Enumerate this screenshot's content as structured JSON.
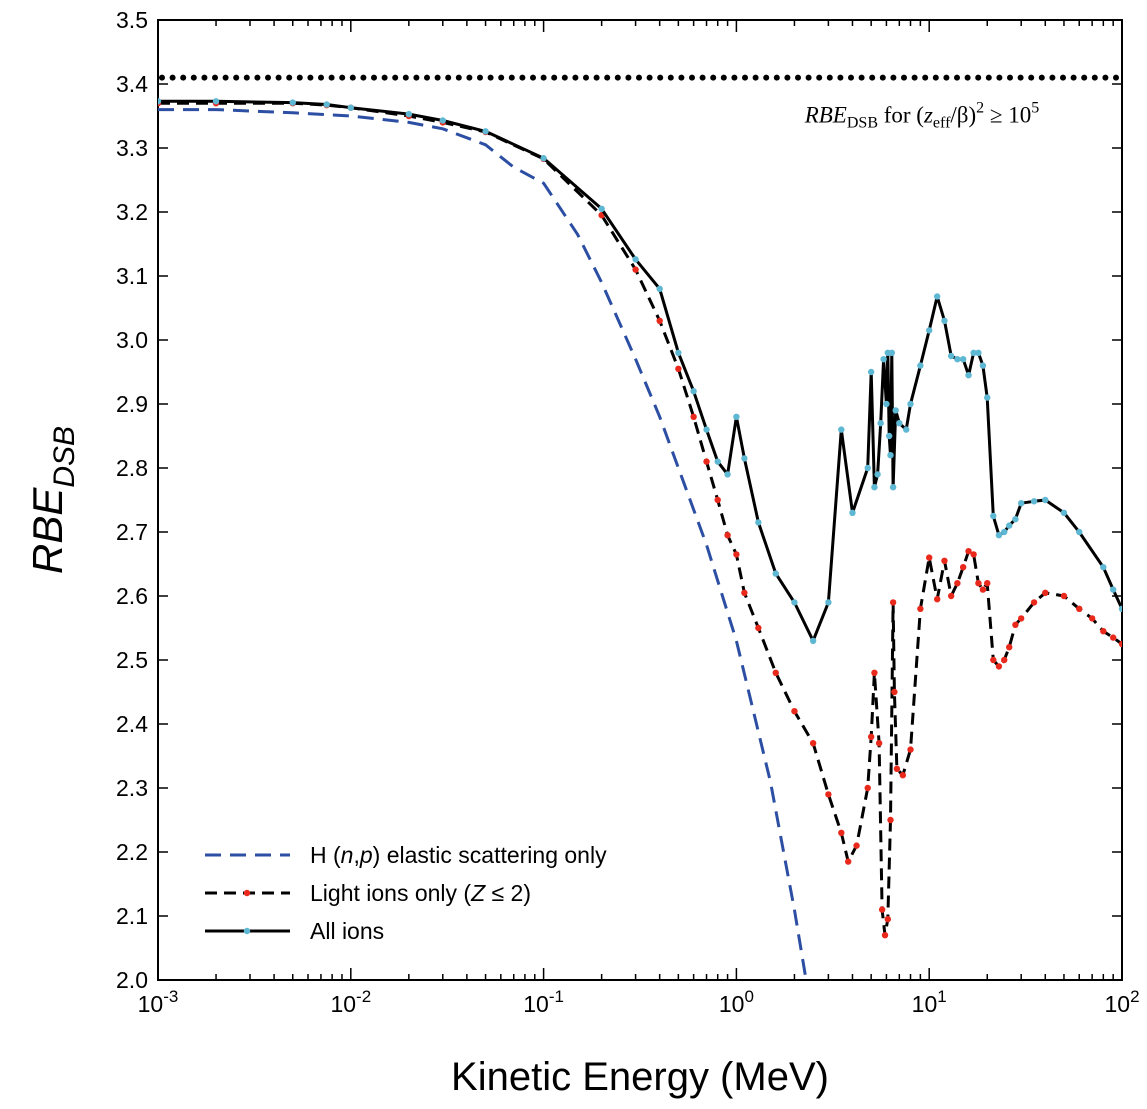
{
  "chart_data": {
    "type": "line",
    "title": "",
    "xlabel": "Kinetic Energy (MeV)",
    "ylabel": {
      "main": "RBE",
      "sub": "DSB"
    },
    "xscale": "log",
    "xlim": [
      0.001,
      100
    ],
    "ylim": [
      2.0,
      3.5
    ],
    "x_tick_labels": [
      {
        "base": "10",
        "exp": "-3"
      },
      {
        "base": "10",
        "exp": "-2"
      },
      {
        "base": "10",
        "exp": "-1"
      },
      {
        "base": "10",
        "exp": "0"
      },
      {
        "base": "10",
        "exp": "1"
      },
      {
        "base": "10",
        "exp": "2"
      }
    ],
    "y_tick_labels": [
      "2.0",
      "2.1",
      "2.2",
      "2.3",
      "2.4",
      "2.5",
      "2.6",
      "2.7",
      "2.8",
      "2.9",
      "3.0",
      "3.1",
      "3.2",
      "3.3",
      "3.4",
      "3.5"
    ],
    "grid": false,
    "legend_position": "bottom-left",
    "reference_line": {
      "y": 3.41,
      "style": "dotted",
      "label": {
        "pre": "RBE",
        "sub1": "DSB",
        "mid": " for (",
        "z": "z",
        "sub2": "eff",
        "tail": "/β)",
        "sup": "2",
        "rel": " ≥ 10",
        "sup2": "5"
      }
    },
    "series": [
      {
        "name": {
          "pre": "H (",
          "i1": "n",
          "mid": ",",
          "i2": "p",
          "post": ") elastic scattering only"
        },
        "style": "dashed",
        "color": "#2c4ea3",
        "marker_color": null,
        "x": [
          0.001,
          0.002,
          0.005,
          0.01,
          0.02,
          0.03,
          0.05,
          0.07,
          0.1,
          0.15,
          0.2,
          0.3,
          0.4,
          0.5,
          0.7,
          1.0,
          1.5,
          2.0,
          2.3
        ],
        "y": [
          3.36,
          3.36,
          3.355,
          3.35,
          3.34,
          3.33,
          3.305,
          3.27,
          3.245,
          3.165,
          3.09,
          2.97,
          2.88,
          2.8,
          2.68,
          2.53,
          2.31,
          2.11,
          2.0
        ]
      },
      {
        "name": {
          "pre": "Light ions only (",
          "i1": "Z",
          "mid": " ≤ 2",
          "i2": "",
          "post": ")"
        },
        "style": "dashed",
        "color": "#000000",
        "marker_color": "#e8291c",
        "x": [
          0.001,
          0.002,
          0.005,
          0.0075,
          0.01,
          0.02,
          0.03,
          0.05,
          0.1,
          0.2,
          0.3,
          0.4,
          0.5,
          0.6,
          0.7,
          0.8,
          0.9,
          1.0,
          1.1,
          1.3,
          1.6,
          2.0,
          2.5,
          3.0,
          3.5,
          3.8,
          4.2,
          4.8,
          5.0,
          5.2,
          5.5,
          5.7,
          5.9,
          6.1,
          6.3,
          6.5,
          6.6,
          6.8,
          7.3,
          8.0,
          9.0,
          10.0,
          11.0,
          12.0,
          13.0,
          14.0,
          15.0,
          16.0,
          17.0,
          18.0,
          19.0,
          20.0,
          21.5,
          23.0,
          24.5,
          26.0,
          28.0,
          30.0,
          35.0,
          40.0,
          50.0,
          60.0,
          70.0,
          80.0,
          90.0,
          100.0
        ],
        "y": [
          3.37,
          3.37,
          3.37,
          3.367,
          3.363,
          3.35,
          3.34,
          3.325,
          3.283,
          3.195,
          3.11,
          3.03,
          2.955,
          2.88,
          2.81,
          2.75,
          2.695,
          2.665,
          2.605,
          2.55,
          2.48,
          2.42,
          2.37,
          2.29,
          2.23,
          2.185,
          2.21,
          2.3,
          2.38,
          2.48,
          2.37,
          2.11,
          2.07,
          2.095,
          2.25,
          2.59,
          2.45,
          2.33,
          2.32,
          2.36,
          2.58,
          2.66,
          2.595,
          2.655,
          2.6,
          2.62,
          2.645,
          2.67,
          2.665,
          2.62,
          2.61,
          2.62,
          2.5,
          2.49,
          2.5,
          2.52,
          2.555,
          2.565,
          2.59,
          2.605,
          2.6,
          2.58,
          2.565,
          2.545,
          2.535,
          2.525
        ]
      },
      {
        "name": {
          "pre": "All ions",
          "i1": "",
          "mid": "",
          "i2": "",
          "post": ""
        },
        "style": "solid",
        "color": "#000000",
        "marker_color": "#5fb8d3",
        "x": [
          0.001,
          0.002,
          0.005,
          0.0075,
          0.01,
          0.02,
          0.03,
          0.05,
          0.1,
          0.2,
          0.3,
          0.4,
          0.5,
          0.6,
          0.7,
          0.8,
          0.9,
          1.0,
          1.1,
          1.3,
          1.6,
          2.0,
          2.5,
          3.0,
          3.5,
          4.0,
          4.8,
          5.0,
          5.2,
          5.4,
          5.6,
          5.8,
          6.0,
          6.1,
          6.2,
          6.3,
          6.4,
          6.5,
          6.7,
          7.0,
          7.6,
          8.0,
          9.0,
          10.0,
          11.0,
          12.0,
          13.0,
          14.0,
          15.0,
          16.0,
          17.0,
          18.0,
          19.0,
          20.0,
          21.5,
          23.0,
          24.5,
          26.0,
          28.0,
          30.0,
          35.0,
          40.0,
          50.0,
          60.0,
          80.0,
          90.0,
          100.0
        ],
        "y": [
          3.373,
          3.373,
          3.371,
          3.368,
          3.363,
          3.353,
          3.343,
          3.326,
          3.284,
          3.205,
          3.126,
          3.08,
          2.98,
          2.92,
          2.86,
          2.81,
          2.79,
          2.88,
          2.815,
          2.715,
          2.635,
          2.59,
          2.53,
          2.59,
          2.86,
          2.73,
          2.8,
          2.95,
          2.77,
          2.79,
          2.87,
          2.97,
          2.9,
          2.98,
          2.85,
          2.82,
          2.98,
          2.77,
          2.89,
          2.87,
          2.86,
          2.9,
          2.96,
          3.015,
          3.068,
          3.03,
          2.975,
          2.97,
          2.97,
          2.945,
          2.98,
          2.98,
          2.96,
          2.91,
          2.725,
          2.695,
          2.7,
          2.71,
          2.72,
          2.745,
          2.748,
          2.75,
          2.73,
          2.7,
          2.645,
          2.61,
          2.58
        ]
      }
    ]
  }
}
